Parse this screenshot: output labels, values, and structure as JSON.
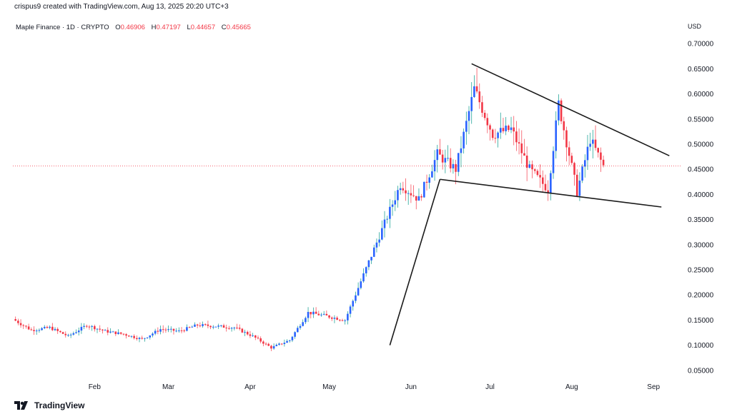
{
  "caption": "crispus9 created with TradingView.com, Aug 13, 2025 20:20 UTC+3",
  "legend": {
    "symbol": "Maple Finance · 1D · CRYPTO",
    "o_label": "O",
    "o_value": "0.46906",
    "h_label": "H",
    "h_value": "0.47197",
    "l_label": "L",
    "l_value": "0.44657",
    "c_label": "C",
    "c_value": "0.45665"
  },
  "footer": {
    "brand": "TradingView",
    "logo_icon": "tradingview-logo-icon"
  },
  "colors": {
    "up": "#2962ff",
    "down": "#f23645",
    "wick_up": "#26a69a",
    "wick_down": "#f7525f",
    "price_line": "#f23645",
    "trendline": "#1a1a1a"
  },
  "chart_data": {
    "type": "candlestick",
    "currency": "USD",
    "ylim": [
      0.02,
      0.73
    ],
    "yticks": [
      "0.70000",
      "0.65000",
      "0.60000",
      "0.55000",
      "0.50000",
      "0.45000",
      "0.40000",
      "0.35000",
      "0.30000",
      "0.25000",
      "0.20000",
      "0.15000",
      "0.10000",
      "0.05000"
    ],
    "xticks": [
      {
        "label": "Feb",
        "date": "2025-02-01"
      },
      {
        "label": "Mar",
        "date": "2025-03-01"
      },
      {
        "label": "Apr",
        "date": "2025-04-01"
      },
      {
        "label": "May",
        "date": "2025-05-01"
      },
      {
        "label": "Jun",
        "date": "2025-06-01"
      },
      {
        "label": "Jul",
        "date": "2025-07-01"
      },
      {
        "label": "Aug",
        "date": "2025-08-01"
      },
      {
        "label": "Sep",
        "date": "2025-09-01"
      }
    ],
    "xlim": [
      "2025-01-01",
      "2025-09-08"
    ],
    "last_price": 0.45665,
    "grid": false,
    "trendlines": [
      {
        "name": "upper",
        "from": [
          "2025-06-24",
          0.66
        ],
        "to": [
          "2025-09-07",
          0.477
        ]
      },
      {
        "name": "lower",
        "from": [
          "2025-06-12",
          0.43
        ],
        "to": [
          "2025-09-04",
          0.375
        ]
      },
      {
        "name": "pole",
        "from": [
          "2025-05-24",
          0.1
        ],
        "to": [
          "2025-06-12",
          0.43
        ]
      }
    ],
    "closes": [
      {
        "date": "2025-01-01",
        "close": 0.152
      },
      {
        "date": "2025-01-08",
        "close": 0.13
      },
      {
        "date": "2025-01-15",
        "close": 0.135
      },
      {
        "date": "2025-01-22",
        "close": 0.118
      },
      {
        "date": "2025-01-29",
        "close": 0.14
      },
      {
        "date": "2025-02-05",
        "close": 0.128
      },
      {
        "date": "2025-02-12",
        "close": 0.122
      },
      {
        "date": "2025-02-19",
        "close": 0.112
      },
      {
        "date": "2025-02-26",
        "close": 0.132
      },
      {
        "date": "2025-03-05",
        "close": 0.128
      },
      {
        "date": "2025-03-12",
        "close": 0.14
      },
      {
        "date": "2025-03-19",
        "close": 0.138
      },
      {
        "date": "2025-03-26",
        "close": 0.135
      },
      {
        "date": "2025-04-02",
        "close": 0.118
      },
      {
        "date": "2025-04-09",
        "close": 0.095
      },
      {
        "date": "2025-04-16",
        "close": 0.11
      },
      {
        "date": "2025-04-23",
        "close": 0.165
      },
      {
        "date": "2025-04-30",
        "close": 0.158
      },
      {
        "date": "2025-05-07",
        "close": 0.15
      },
      {
        "date": "2025-05-14",
        "close": 0.24
      },
      {
        "date": "2025-05-21",
        "close": 0.33
      },
      {
        "date": "2025-05-28",
        "close": 0.42
      },
      {
        "date": "2025-06-04",
        "close": 0.39
      },
      {
        "date": "2025-06-11",
        "close": 0.48
      },
      {
        "date": "2025-06-18",
        "close": 0.45
      },
      {
        "date": "2025-06-25",
        "close": 0.61
      },
      {
        "date": "2025-07-02",
        "close": 0.52
      },
      {
        "date": "2025-07-09",
        "close": 0.53
      },
      {
        "date": "2025-07-16",
        "close": 0.45
      },
      {
        "date": "2025-07-23",
        "close": 0.41
      },
      {
        "date": "2025-07-27",
        "close": 0.58
      },
      {
        "date": "2025-08-03",
        "close": 0.405
      },
      {
        "date": "2025-08-08",
        "close": 0.51
      },
      {
        "date": "2025-08-13",
        "close": 0.45665
      }
    ]
  }
}
